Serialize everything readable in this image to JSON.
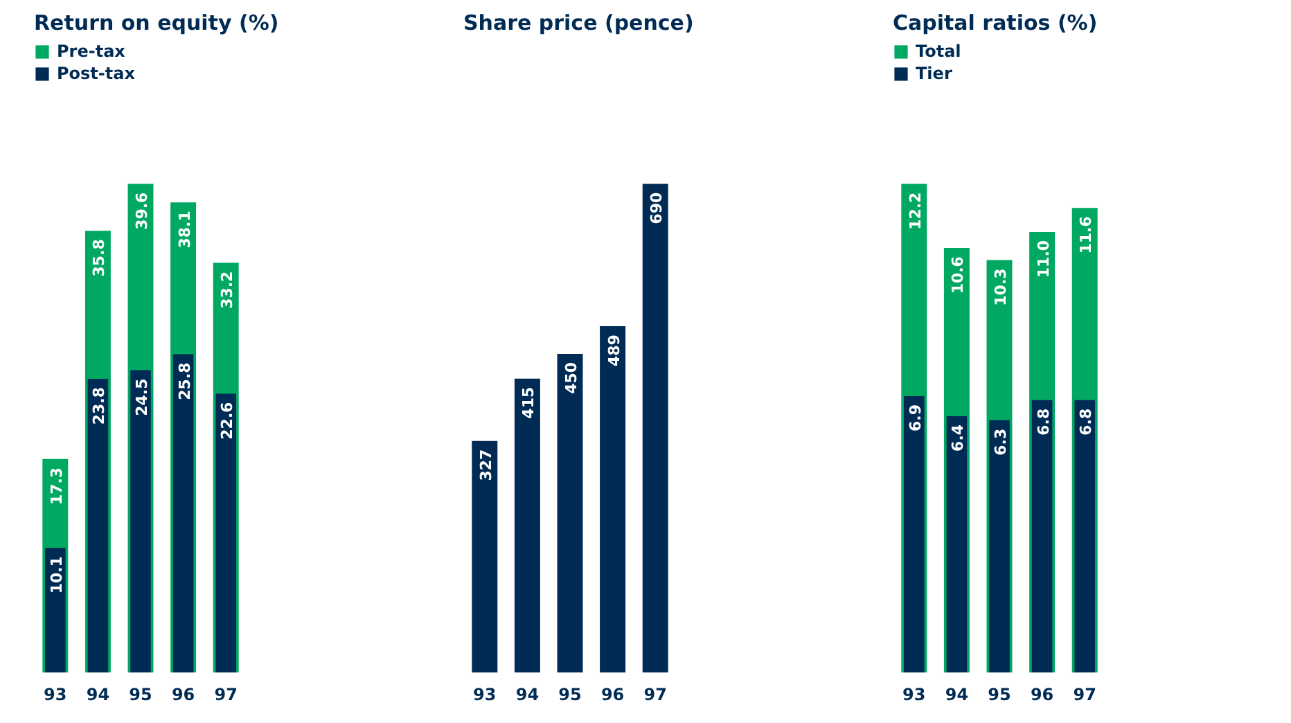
{
  "chart_data": [
    {
      "type": "bar",
      "title": "Return on equity (%)",
      "categories": [
        "93",
        "94",
        "95",
        "96",
        "97"
      ],
      "series": [
        {
          "name": "Pre-tax",
          "color": "#00a862",
          "values": [
            17.3,
            35.8,
            39.6,
            38.1,
            33.2
          ]
        },
        {
          "name": "Post-tax",
          "color": "#002b54",
          "values": [
            10.1,
            23.8,
            24.5,
            25.8,
            22.6
          ]
        }
      ],
      "data_labels": true,
      "legend": "top left",
      "grid": false
    },
    {
      "type": "bar",
      "title": "Share price (pence)",
      "categories": [
        "93",
        "94",
        "95",
        "96",
        "97"
      ],
      "series": [
        {
          "color": "#002b54",
          "values": [
            327,
            415,
            450,
            489,
            690
          ]
        }
      ],
      "data_labels": true,
      "grid": false
    },
    {
      "type": "bar",
      "title": "Capital ratios (%)",
      "categories": [
        "93",
        "94",
        "95",
        "96",
        "97"
      ],
      "series": [
        {
          "name": "Total",
          "color": "#00a862",
          "values": [
            12.2,
            10.6,
            10.3,
            11.0,
            11.6
          ],
          "value_labels": [
            "12.2",
            "10.6",
            "10.3",
            "11.0",
            "11.6"
          ]
        },
        {
          "name": "Tier",
          "color": "#002b54",
          "values": [
            6.9,
            6.4,
            6.3,
            6.8,
            6.8
          ]
        }
      ],
      "data_labels": true,
      "legend": "top left",
      "grid": false
    }
  ]
}
